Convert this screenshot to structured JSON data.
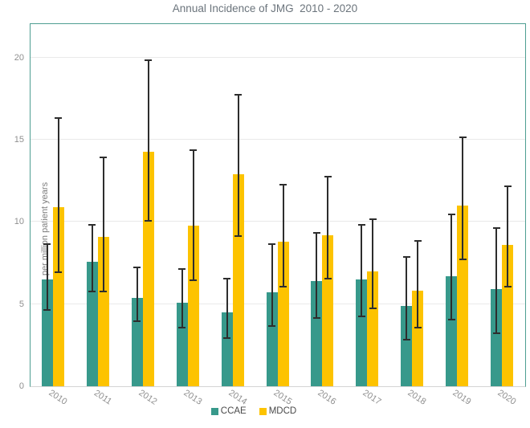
{
  "title": "Annual Incidence of JMG  2010 - 2020",
  "colors": {
    "ccae": "#37998b",
    "mdcd": "#fdc300",
    "plot_border": "#4e9e92",
    "gridline": "#e9e9e9",
    "axis_line": "#d4d4d4",
    "error_bar": "#2d2d2d",
    "title_text": "#6b747c",
    "tick_text": "#8f8f8f"
  },
  "chart_data": {
    "type": "bar",
    "title": "Annual Incidence of JMG  2010 - 2020",
    "xlabel": "",
    "ylabel": "per million patient years",
    "categories": [
      "2010",
      "2011",
      "2012",
      "2013",
      "2014",
      "2015",
      "2016",
      "2017",
      "2018",
      "2019",
      "2020"
    ],
    "series": [
      {
        "name": "CCAE",
        "color": "#37998b",
        "values": [
          6.5,
          7.6,
          5.4,
          5.1,
          4.5,
          5.7,
          6.4,
          6.5,
          4.9,
          6.7,
          5.9
        ],
        "error_low": [
          4.6,
          5.7,
          3.9,
          3.5,
          2.9,
          3.6,
          4.1,
          4.2,
          2.8,
          4.0,
          3.2
        ],
        "error_high": [
          8.7,
          9.9,
          7.3,
          7.2,
          6.6,
          8.7,
          9.4,
          9.9,
          7.9,
          10.5,
          9.7
        ]
      },
      {
        "name": "MDCD",
        "color": "#fdc300",
        "values": [
          10.9,
          9.1,
          14.3,
          9.8,
          12.9,
          8.8,
          9.2,
          7.0,
          5.8,
          11.0,
          8.6
        ],
        "error_low": [
          6.9,
          5.7,
          10.0,
          6.4,
          9.1,
          6.0,
          6.5,
          4.7,
          3.5,
          7.7,
          6.0
        ],
        "error_high": [
          16.4,
          14.0,
          19.9,
          14.4,
          17.8,
          12.3,
          12.8,
          10.2,
          8.9,
          15.2,
          12.2
        ]
      }
    ],
    "ylim": [
      0,
      22
    ],
    "yticks": [
      0,
      5,
      10,
      15,
      20
    ],
    "grid": "horizontal-only",
    "error_bars": true,
    "legend_position": "bottom"
  }
}
